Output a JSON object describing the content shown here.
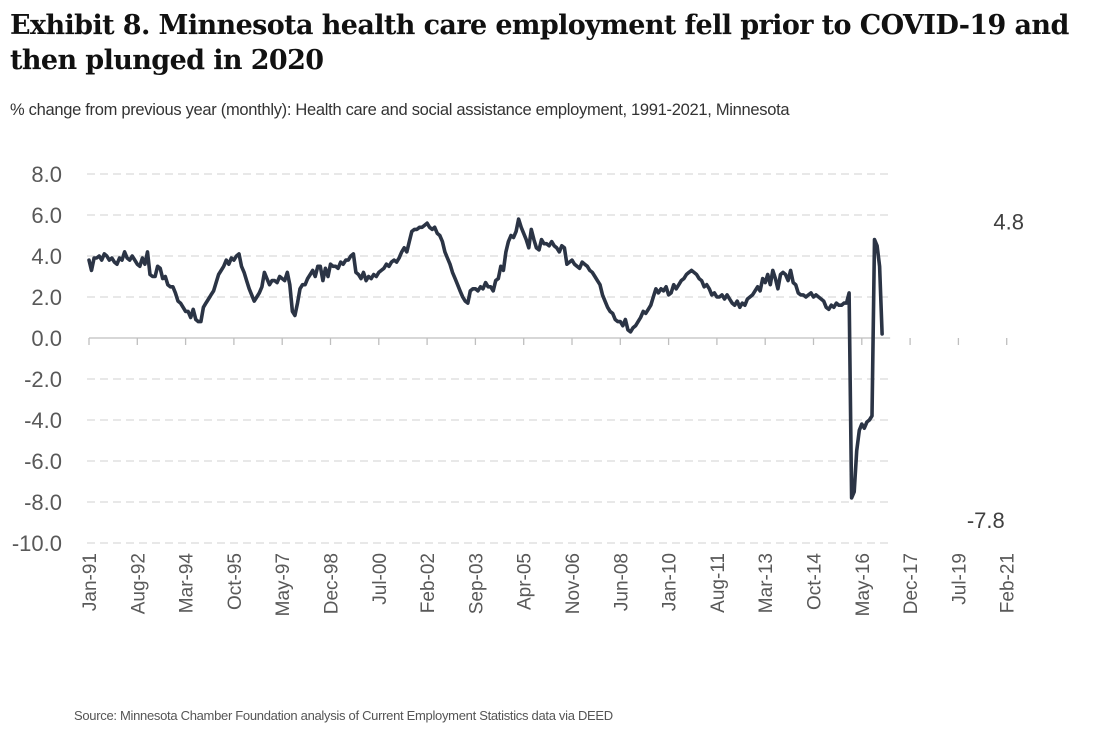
{
  "header": {
    "title": "Exhibit 8. Minnesota health care employment fell prior to COVID-19 and then plunged in 2020",
    "subtitle": "% change from previous year (monthly): Health care and social assistance employment, 1991-2021, Minnesota"
  },
  "footer": {
    "source": "Source: Minnesota Chamber Foundation analysis of Current Employment Statistics data via DEED"
  },
  "chart_data": {
    "type": "line",
    "title": "Exhibit 8. Minnesota health care employment fell prior to COVID-19 and then plunged in 2020",
    "subtitle": "% change from previous year (monthly): Health care and social assistance employment, 1991-2021, Minnesota",
    "xlabel": "",
    "ylabel": "",
    "ylim": [
      -10,
      8
    ],
    "yticks": [
      8,
      6,
      4,
      2,
      0,
      -2,
      -4,
      -6,
      -8,
      -10
    ],
    "ytick_labels": [
      "8.0",
      "6.0",
      "4.0",
      "2.0",
      "0.0",
      "-2.0",
      "-4.0",
      "-6.0",
      "-8.0",
      "-10.0"
    ],
    "x_start": "Jan-91",
    "x_interval_months": 1,
    "xtick_labels": [
      "Jan-91",
      "Aug-92",
      "Mar-94",
      "Oct-95",
      "May-97",
      "Dec-98",
      "Jul-00",
      "Feb-02",
      "Sep-03",
      "Apr-05",
      "Nov-06",
      "Jun-08",
      "Jan-10",
      "Aug-11",
      "Mar-13",
      "Oct-14",
      "May-16",
      "Dec-17",
      "Jul-19",
      "Feb-21"
    ],
    "xtick_every_months": 19,
    "grid": "horizontal-dashed",
    "legend": "none",
    "annotations": [
      {
        "label": "4.8",
        "month_index": 361,
        "value": 4.8,
        "position": "above"
      },
      {
        "label": "-7.8",
        "month_index": 352,
        "value": -7.8,
        "position": "below"
      }
    ],
    "series": [
      {
        "name": "Health care and social assistance employment, % change from previous year",
        "color": "#2b3445",
        "values": [
          3.8,
          3.3,
          3.9,
          3.9,
          4.0,
          3.8,
          4.1,
          4.0,
          3.8,
          3.9,
          3.7,
          3.6,
          3.9,
          3.8,
          4.2,
          3.9,
          3.8,
          4.0,
          3.8,
          3.6,
          3.5,
          3.9,
          3.6,
          4.2,
          3.1,
          3.0,
          3.0,
          3.5,
          3.4,
          2.9,
          3.0,
          2.6,
          2.5,
          2.5,
          2.2,
          1.8,
          1.7,
          1.5,
          1.3,
          1.3,
          1.0,
          1.4,
          0.9,
          0.8,
          0.8,
          1.5,
          1.7,
          1.9,
          2.1,
          2.3,
          2.7,
          3.1,
          3.3,
          3.5,
          3.8,
          3.6,
          3.9,
          3.8,
          4.0,
          4.1,
          3.5,
          3.2,
          2.8,
          2.4,
          2.1,
          1.8,
          2.0,
          2.2,
          2.5,
          3.2,
          2.9,
          2.6,
          2.8,
          2.8,
          2.7,
          3.0,
          2.9,
          2.8,
          3.2,
          2.6,
          1.3,
          1.1,
          1.7,
          2.4,
          2.6,
          2.6,
          2.9,
          3.1,
          3.3,
          3.0,
          3.5,
          3.5,
          2.8,
          3.4,
          3.0,
          3.6,
          3.5,
          3.5,
          3.4,
          3.7,
          3.6,
          3.8,
          3.8,
          4.0,
          4.1,
          3.2,
          3.1,
          2.9,
          3.2,
          2.8,
          3.0,
          2.9,
          3.1,
          3.0,
          3.2,
          3.3,
          3.4,
          3.6,
          3.5,
          3.7,
          3.8,
          3.7,
          3.9,
          4.2,
          4.4,
          4.2,
          4.7,
          5.2,
          5.3,
          5.3,
          5.4,
          5.4,
          5.5,
          5.6,
          5.4,
          5.3,
          5.4,
          5.1,
          5.0,
          4.7,
          4.2,
          3.9,
          3.6,
          3.2,
          2.9,
          2.6,
          2.3,
          2.0,
          1.8,
          1.7,
          2.3,
          2.4,
          2.4,
          2.3,
          2.5,
          2.4,
          2.7,
          2.5,
          2.5,
          2.3,
          2.8,
          2.9,
          3.5,
          3.3,
          4.2,
          4.7,
          5.0,
          4.9,
          5.2,
          5.8,
          5.4,
          5.1,
          4.8,
          4.4,
          5.3,
          4.8,
          4.4,
          4.3,
          4.8,
          4.6,
          4.6,
          4.5,
          4.7,
          4.5,
          4.4,
          4.2,
          4.5,
          4.4,
          3.6,
          3.7,
          3.8,
          3.6,
          3.5,
          3.4,
          3.7,
          3.6,
          3.5,
          3.3,
          3.2,
          3.0,
          2.8,
          2.6,
          2.1,
          1.8,
          1.5,
          1.3,
          1.2,
          0.9,
          0.8,
          0.8,
          0.6,
          0.9,
          0.4,
          0.3,
          0.5,
          0.6,
          0.8,
          1.0,
          1.3,
          1.2,
          1.4,
          1.6,
          2.0,
          2.4,
          2.2,
          2.4,
          2.3,
          2.5,
          2.1,
          2.2,
          2.6,
          2.4,
          2.6,
          2.8,
          2.9,
          3.1,
          3.2,
          3.3,
          3.2,
          3.1,
          2.9,
          2.8,
          2.5,
          2.6,
          2.4,
          2.1,
          2.2,
          2.0,
          2.0,
          2.1,
          1.9,
          2.1,
          1.9,
          1.7,
          1.6,
          1.8,
          1.5,
          1.7,
          1.6,
          1.9,
          2.0,
          2.1,
          2.3,
          2.5,
          2.3,
          2.9,
          2.7,
          3.1,
          2.6,
          3.3,
          2.9,
          2.4,
          3.1,
          3.2,
          3.1,
          2.8,
          3.3,
          2.7,
          2.6,
          2.2,
          2.1,
          2.1,
          2.0,
          2.1,
          2.2,
          2.0,
          2.1,
          2.0,
          1.9,
          1.8,
          1.5,
          1.4,
          1.6,
          1.5,
          1.7,
          1.6,
          1.6,
          1.7,
          1.7,
          2.2,
          -7.8,
          -7.5,
          -5.5,
          -4.5,
          -4.2,
          -4.4,
          -4.1,
          -4.0,
          -3.8,
          4.8,
          4.5,
          3.5,
          0.2
        ]
      }
    ]
  }
}
